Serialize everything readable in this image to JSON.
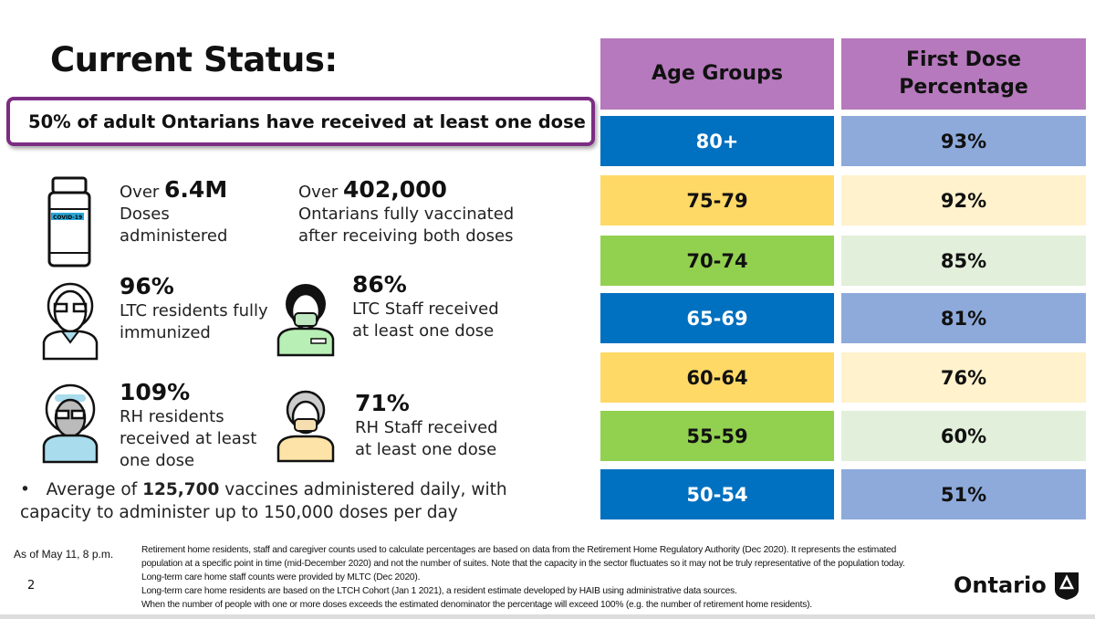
{
  "title": "Current Status:",
  "banner": "50% of adult Ontarians have received at least one dose",
  "stats": [
    {
      "prefix": "Over ",
      "value": "6.4M",
      "text": "Doses administered",
      "icon": "vaccine-vial-icon"
    },
    {
      "prefix": "Over ",
      "value": "402,000",
      "text": "Ontarians fully vaccinated after receiving both doses"
    },
    {
      "value": "96%",
      "text": "LTC residents fully immunized",
      "icon": "elderly-man-icon"
    },
    {
      "value": "86%",
      "text": "LTC Staff received at least one dose",
      "icon": "nurse-icon"
    },
    {
      "value": "109%",
      "text": "RH residents received at least one dose",
      "icon": "elderly-woman-icon"
    },
    {
      "value": "71%",
      "text": "RH Staff received at least one dose",
      "icon": "staff-person-icon"
    }
  ],
  "vial_label": "COVID-19",
  "bullet": {
    "pre": "Average of ",
    "value": "125,700",
    "post": " vaccines administered daily, with capacity to administer up to 150,000 doses per day"
  },
  "table": {
    "headers": [
      "Age Groups",
      "First Dose Percentage"
    ],
    "rows": [
      {
        "age": "80+",
        "pct": "93%"
      },
      {
        "age": "75-79",
        "pct": "92%"
      },
      {
        "age": "70-74",
        "pct": "85%"
      },
      {
        "age": "65-69",
        "pct": "81%"
      },
      {
        "age": "60-64",
        "pct": "76%"
      },
      {
        "age": "55-59",
        "pct": "60%"
      },
      {
        "age": "50-54",
        "pct": "51%"
      }
    ],
    "colors": {
      "header": "#b679bd",
      "blue": "#0070c0",
      "light_blue": "#8eaadb",
      "yellow": "#ffd966",
      "light_yellow": "#fff2cc",
      "green": "#92d050",
      "light_green": "#e2efda"
    }
  },
  "footer": {
    "as_of": "As of May 11, 8 p.m.",
    "page": "2",
    "notes": [
      "Retirement home residents, staff and caregiver counts used to calculate percentages are based on data from the Retirement Home Regulatory Authority (Dec 2020). It represents the estimated population at a specific point in time (mid-December 2020) and not the number of suites. Note that the capacity in the sector fluctuates so it may not be truly representative of the population today. Long-term care home staff counts were provided by MLTC (Dec 2020).",
      "Long-term care home residents are based on the LTCH Cohort (Jan 1 2021), a resident estimate developed by HAIB using administrative data sources.",
      "When the number of people with one or more doses exceeds the estimated denominator the percentage will exceed 100% (e.g. the number of retirement home residents)."
    ],
    "logo": "Ontario"
  }
}
